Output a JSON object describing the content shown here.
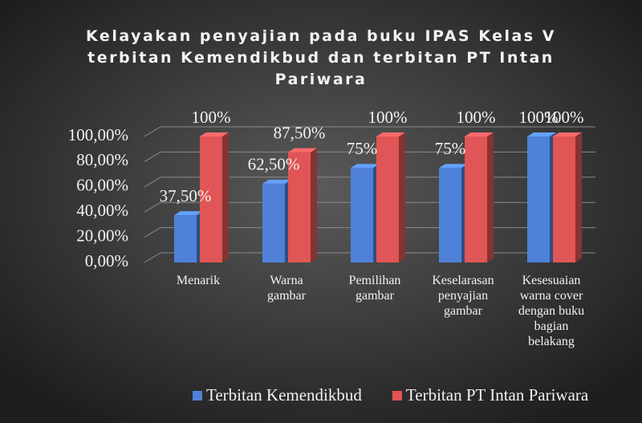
{
  "chart_data": {
    "type": "bar",
    "title": "Kelayakan penyajian pada buku IPAS Kelas V terbitan Kemendikbud dan terbitan PT Intan Pariwara",
    "categories": [
      "Menarik",
      "Warna gambar",
      "Pemilihan gambar",
      "Keselarasan penyajian gambar",
      "Kesesuaian warna cover dengan buku bagian belakang"
    ],
    "series": [
      {
        "name": "Terbitan Kemendikbud",
        "color": "#4f81d9",
        "values": [
          37.5,
          62.5,
          75,
          75,
          100
        ],
        "value_labels": [
          "37,50%",
          "62,50%",
          "75%",
          "75%",
          "100%"
        ]
      },
      {
        "name": "Terbitan PT Intan Pariwara",
        "color": "#e05555",
        "values": [
          100,
          87.5,
          100,
          100,
          100
        ],
        "value_labels": [
          "100%",
          "87,50%",
          "100%",
          "100%",
          "100%"
        ]
      }
    ],
    "ylim": [
      0,
      100
    ],
    "yticks": [
      {
        "value": 0,
        "label": "0,00%"
      },
      {
        "value": 20,
        "label": "20,00%"
      },
      {
        "value": 40,
        "label": "40,00%"
      },
      {
        "value": 60,
        "label": "60,00%"
      },
      {
        "value": 80,
        "label": "80,00%"
      },
      {
        "value": 100,
        "label": "100,00%"
      }
    ],
    "grid": true,
    "legend": "bottom"
  }
}
